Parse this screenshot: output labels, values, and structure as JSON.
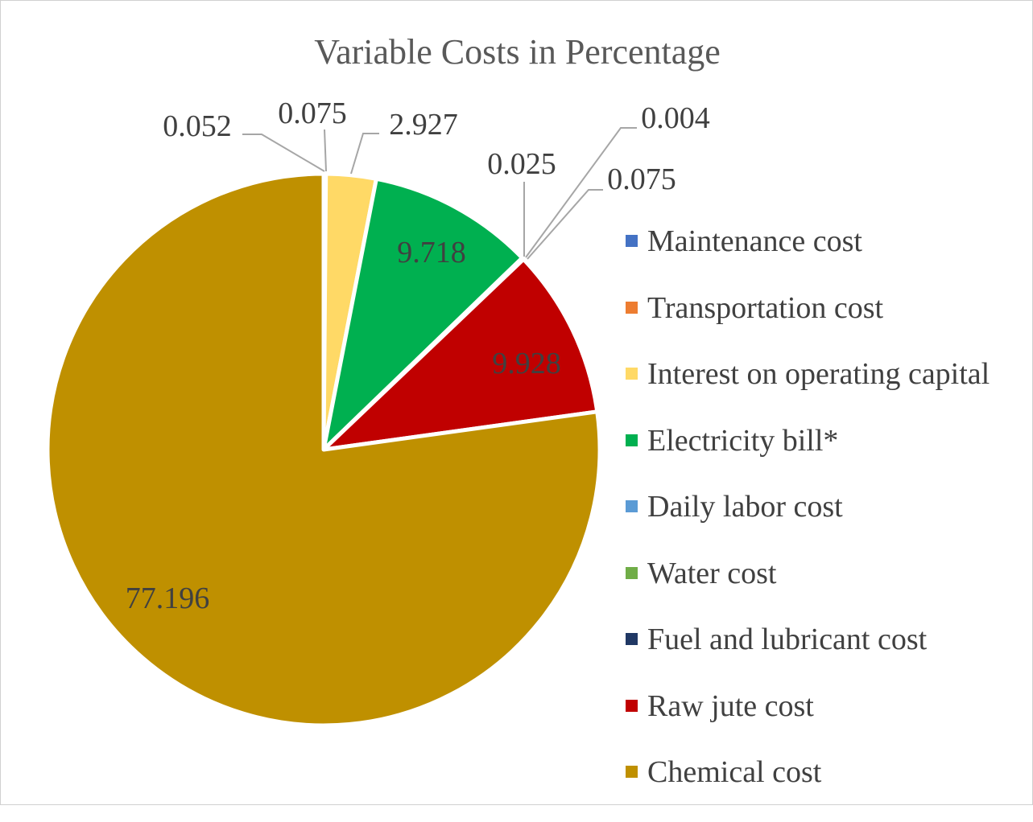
{
  "chart_data": {
    "type": "pie",
    "title": "Variable Costs in Percentage",
    "legend_position": "right",
    "slices": [
      {
        "label": "Maintenance cost",
        "value": 0.052,
        "value_text": "0.052",
        "color": "#4472c4"
      },
      {
        "label": "Transportation cost",
        "value": 0.075,
        "value_text": "0.075",
        "color": "#ed7d31"
      },
      {
        "label": "Interest on operating capital",
        "value": 2.927,
        "value_text": "2.927",
        "color": "#ffd966"
      },
      {
        "label": "Electricity bill*",
        "value": 9.718,
        "value_text": "9.718",
        "color": "#00b050"
      },
      {
        "label": "Daily labor cost",
        "value": 0.025,
        "value_text": "0.025",
        "color": "#5b9bd5"
      },
      {
        "label": "Water cost",
        "value": 0.004,
        "value_text": "0.004",
        "color": "#70ad47"
      },
      {
        "label": "Fuel and lubricant cost",
        "value": 0.075,
        "value_text": "0.075",
        "color": "#203864"
      },
      {
        "label": "Raw jute cost",
        "value": 9.928,
        "value_text": "9.928",
        "color": "#c00000"
      },
      {
        "label": "Chemical cost",
        "value": 77.196,
        "value_text": "77.196",
        "color": "#bf9000"
      }
    ]
  }
}
